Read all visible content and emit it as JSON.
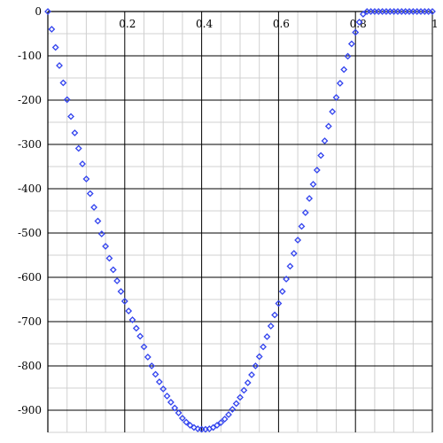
{
  "chart_data": {
    "type": "scatter",
    "title": "",
    "xlabel": "",
    "ylabel": "",
    "xlim": [
      0,
      1
    ],
    "ylim": [
      -950,
      0
    ],
    "grid": true,
    "marker": "diamond-open",
    "x_ticks": [
      {
        "value": 0.2,
        "label": "0.2"
      },
      {
        "value": 0.4,
        "label": "0.4"
      },
      {
        "value": 0.6,
        "label": "0.6"
      },
      {
        "value": 0.8,
        "label": "0.8"
      },
      {
        "value": 1,
        "label": "1"
      }
    ],
    "y_ticks": [
      {
        "value": 0,
        "label": "0"
      },
      {
        "value": -100,
        "label": "-100"
      },
      {
        "value": -200,
        "label": "-200"
      },
      {
        "value": -300,
        "label": "-300"
      },
      {
        "value": -400,
        "label": "-400"
      },
      {
        "value": -500,
        "label": "-500"
      },
      {
        "value": -600,
        "label": "-600"
      },
      {
        "value": -700,
        "label": "-700"
      },
      {
        "value": -800,
        "label": "-800"
      },
      {
        "value": -900,
        "label": "-900"
      }
    ],
    "series": [
      {
        "color": "#3344ee",
        "x": [
          0.0,
          0.01,
          0.02,
          0.03,
          0.04,
          0.05,
          0.06,
          0.07,
          0.08,
          0.09,
          0.1,
          0.11,
          0.12,
          0.13,
          0.14,
          0.15,
          0.16,
          0.17,
          0.18,
          0.19,
          0.2,
          0.21,
          0.22,
          0.23,
          0.24,
          0.25,
          0.26,
          0.27,
          0.28,
          0.29,
          0.3,
          0.31,
          0.32,
          0.33,
          0.34,
          0.35,
          0.36,
          0.37,
          0.38,
          0.39,
          0.4,
          0.41,
          0.42,
          0.43,
          0.44,
          0.45,
          0.46,
          0.47,
          0.48,
          0.49,
          0.5,
          0.51,
          0.52,
          0.53,
          0.54,
          0.55,
          0.56,
          0.57,
          0.58,
          0.59,
          0.6,
          0.61,
          0.62,
          0.63,
          0.64,
          0.65,
          0.66,
          0.67,
          0.68,
          0.69,
          0.7,
          0.71,
          0.72,
          0.73,
          0.74,
          0.75,
          0.76,
          0.77,
          0.78,
          0.79,
          0.8,
          0.81,
          0.82,
          0.83,
          0.84,
          0.85,
          0.86,
          0.87,
          0.88,
          0.89,
          0.9,
          0.91,
          0.92,
          0.93,
          0.94,
          0.95,
          0.96,
          0.97,
          0.98,
          0.99,
          1.0
        ],
        "y": [
          0,
          -40,
          -81,
          -122,
          -161,
          -199,
          -237,
          -274,
          -309,
          -344,
          -378,
          -411,
          -442,
          -473,
          -502,
          -530,
          -557,
          -583,
          -608,
          -632,
          -654,
          -676,
          -696,
          -715,
          -733,
          -757,
          -780,
          -800,
          -819,
          -836,
          -852,
          -868,
          -882,
          -895,
          -906,
          -918,
          -927,
          -934,
          -939,
          -942,
          -943,
          -943,
          -942,
          -939,
          -934,
          -928,
          -920,
          -910,
          -898,
          -885,
          -871,
          -855,
          -838,
          -820,
          -800,
          -779,
          -757,
          -734,
          -710,
          -685,
          -659,
          -632,
          -604,
          -575,
          -546,
          -516,
          -485,
          -454,
          -422,
          -390,
          -358,
          -325,
          -292,
          -259,
          -226,
          -194,
          -162,
          -131,
          -101,
          -73,
          -47,
          -24,
          -6,
          0,
          0,
          0,
          0,
          0,
          0,
          0,
          0,
          0,
          0,
          0,
          0,
          0,
          0,
          0,
          0,
          0,
          0
        ]
      }
    ]
  }
}
